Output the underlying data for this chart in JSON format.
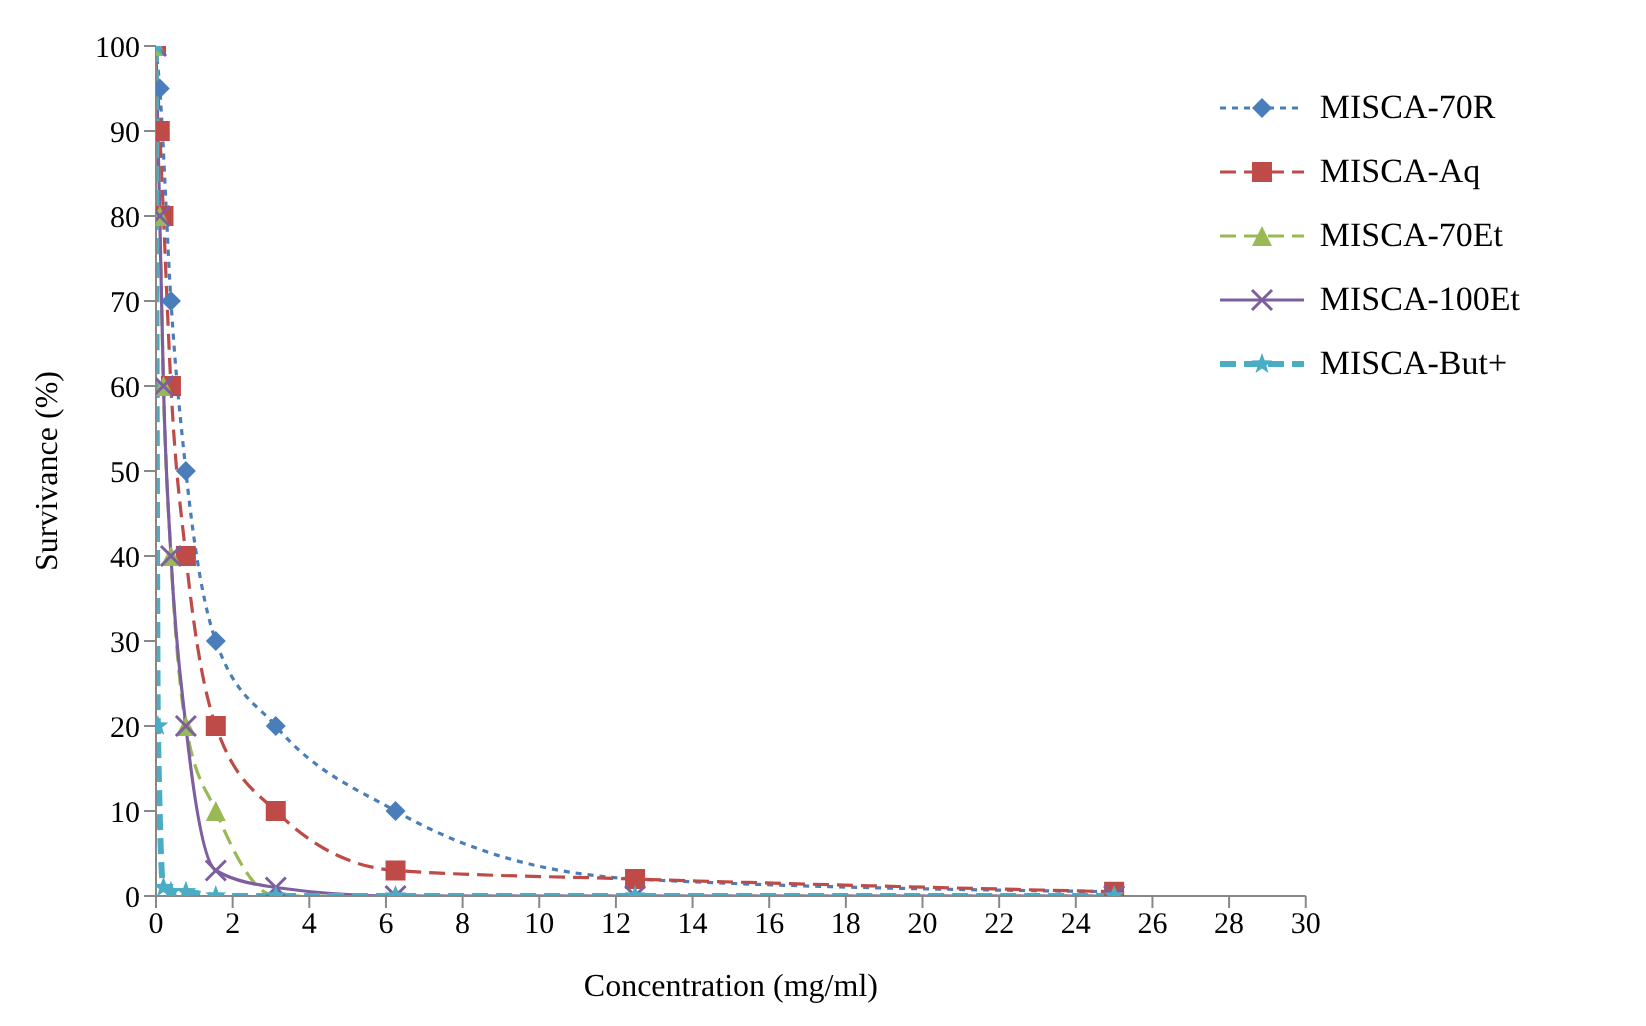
{
  "chart_data": {
    "type": "line",
    "xlabel": "Concentration (mg/ml)",
    "ylabel": "Survivance (%)",
    "xlim": [
      0,
      30
    ],
    "xticks": [
      0,
      2,
      4,
      6,
      8,
      10,
      12,
      14,
      16,
      18,
      20,
      22,
      24,
      26,
      28,
      30
    ],
    "ylim": [
      0,
      100
    ],
    "yticks": [
      0,
      10,
      20,
      30,
      40,
      50,
      60,
      70,
      80,
      90,
      100
    ],
    "grid": false,
    "legend": "top right",
    "series": [
      {
        "name": "MISCA-70R",
        "color": "#4a7ebb",
        "marker": "diamond",
        "line_style": "dotted",
        "x": [
          0,
          0.098,
          0.39,
          0.78,
          1.56,
          3.125,
          6.25,
          12.5,
          25
        ],
        "values": [
          100,
          95,
          70,
          50,
          30,
          20,
          10,
          2,
          0.5
        ]
      },
      {
        "name": "MISCA-Aq",
        "color": "#be4b48",
        "marker": "square",
        "line_style": "dashed",
        "x": [
          0,
          0.098,
          0.195,
          0.39,
          0.78,
          1.56,
          3.125,
          6.25,
          12.5,
          25
        ],
        "values": [
          100,
          90,
          80,
          60,
          40,
          20,
          10,
          3,
          2,
          0.5
        ]
      },
      {
        "name": "MISCA-70Et",
        "color": "#98b954",
        "marker": "triangle",
        "line_style": "dashed",
        "x": [
          0,
          0.098,
          0.195,
          0.39,
          0.78,
          1.56,
          3.125,
          6.25,
          25
        ],
        "values": [
          100,
          80,
          60,
          40,
          20,
          10,
          0,
          0,
          0
        ]
      },
      {
        "name": "MISCA-100Et",
        "color": "#7d5fa0",
        "marker": "cross",
        "line_style": "solid",
        "x": [
          0,
          0.098,
          0.195,
          0.39,
          0.78,
          1.56,
          3.125,
          6.25,
          12.5,
          25
        ],
        "values": [
          100,
          80,
          60,
          40,
          20,
          3,
          1,
          0,
          0,
          0
        ]
      },
      {
        "name": "MISCA-But+",
        "color": "#4bacc6",
        "marker": "star",
        "line_style": "dashed",
        "x": [
          0,
          0.049,
          0.195,
          0.39,
          0.78,
          1.56,
          3.125,
          6.25,
          12.5,
          25
        ],
        "values": [
          100,
          20,
          1,
          0.5,
          0.5,
          0,
          0,
          0,
          0,
          0
        ]
      }
    ]
  }
}
